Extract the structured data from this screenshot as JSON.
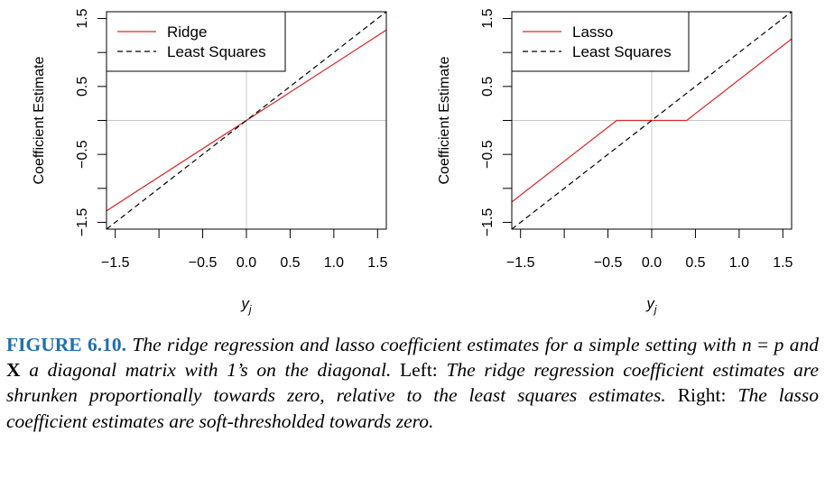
{
  "chart_data": [
    {
      "type": "line",
      "panel": "left",
      "title": "",
      "xlabel": "y_j",
      "ylabel": "Coefficient Estimate",
      "xlim": [
        -1.6,
        1.6
      ],
      "ylim": [
        -1.6,
        1.6
      ],
      "x_tick_labels": [
        "−1.5",
        "−0.5",
        "0.0",
        "0.5",
        "1.0",
        "1.5"
      ],
      "x_tick_values": [
        -1.5,
        -0.5,
        0.0,
        0.5,
        1.0,
        1.5
      ],
      "x_ticks_unlabeled": [
        -1.0
      ],
      "y_tick_labels": [
        "−1.5",
        "−0.5",
        "0.5",
        "1.5"
      ],
      "y_tick_values": [
        -1.5,
        -0.5,
        0.5,
        1.5
      ],
      "y_ticks_unlabeled": [
        -1.0,
        0.0,
        1.0
      ],
      "reference_lines": {
        "x": 0,
        "y": 0,
        "color": "#c8c8c8"
      },
      "legend": {
        "position": "top-left",
        "items": [
          "Ridge",
          "Least Squares"
        ]
      },
      "series": [
        {
          "name": "Ridge",
          "color": "#d62728",
          "dash": "solid",
          "x": [
            -1.6,
            1.6
          ],
          "y": [
            -1.33,
            1.33
          ]
        },
        {
          "name": "Least Squares",
          "color": "#000000",
          "dash": "dashed",
          "x": [
            -1.6,
            1.6
          ],
          "y": [
            -1.6,
            1.6
          ]
        }
      ]
    },
    {
      "type": "line",
      "panel": "right",
      "title": "",
      "xlabel": "y_j",
      "ylabel": "Coefficient Estimate",
      "xlim": [
        -1.6,
        1.6
      ],
      "ylim": [
        -1.6,
        1.6
      ],
      "x_tick_labels": [
        "−1.5",
        "−0.5",
        "0.0",
        "0.5",
        "1.0",
        "1.5"
      ],
      "x_tick_values": [
        -1.5,
        -0.5,
        0.0,
        0.5,
        1.0,
        1.5
      ],
      "x_ticks_unlabeled": [
        -1.0
      ],
      "y_tick_labels": [
        "−1.5",
        "−0.5",
        "0.5",
        "1.5"
      ],
      "y_tick_values": [
        -1.5,
        -0.5,
        0.5,
        1.5
      ],
      "y_ticks_unlabeled": [
        -1.0,
        0.0,
        1.0
      ],
      "reference_lines": {
        "x": 0,
        "y": 0,
        "color": "#c8c8c8"
      },
      "legend": {
        "position": "top-left",
        "items": [
          "Lasso",
          "Least Squares"
        ]
      },
      "series": [
        {
          "name": "Lasso",
          "color": "#d62728",
          "dash": "solid",
          "x": [
            -1.6,
            -0.4,
            0.4,
            1.6
          ],
          "y": [
            -1.2,
            0,
            0,
            1.2
          ]
        },
        {
          "name": "Least Squares",
          "color": "#000000",
          "dash": "dashed",
          "x": [
            -1.6,
            1.6
          ],
          "y": [
            -1.6,
            1.6
          ]
        }
      ]
    }
  ],
  "caption": {
    "label": "FIGURE 6.10.",
    "part1": " The ridge regression and lasso coefficient estimates for a simple setting with ",
    "math_n": "n",
    "eq": " = ",
    "math_p": "p",
    "part2": " and ",
    "math_X": "X",
    "part3": " a diagonal matrix with 1’s on the diagonal. ",
    "left_word": "Left:",
    "part4": " The ridge regression coefficient estimates are shrunken proportionally towards zero, relative to the least squares estimates. ",
    "right_word": "Right:",
    "part5": " The lasso coefficient estimates are soft-thresholded towards zero."
  }
}
